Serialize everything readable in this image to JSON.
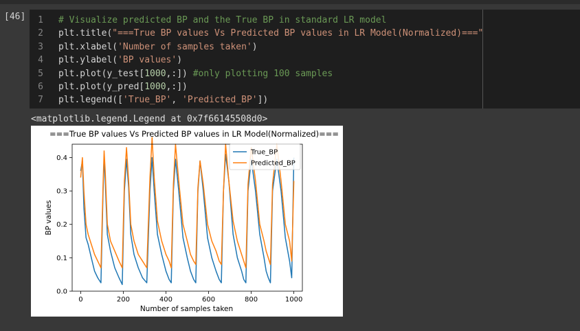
{
  "cell": {
    "execution_count": "[46]",
    "lines": [
      {
        "number": "1",
        "tokens": [
          {
            "type": "comment",
            "text": "# Visualize predicted BP and the True BP in standard LR model"
          }
        ]
      },
      {
        "number": "2",
        "tokens": [
          {
            "type": "plain",
            "text": "plt.title("
          },
          {
            "type": "string",
            "text": "\"===True BP values Vs Predicted BP values in LR Model(Normalized)===\""
          },
          {
            "type": "plain",
            "text": ")"
          }
        ]
      },
      {
        "number": "3",
        "tokens": [
          {
            "type": "plain",
            "text": "plt.xlabel("
          },
          {
            "type": "string",
            "text": "'Number of samples taken'"
          },
          {
            "type": "plain",
            "text": ")"
          }
        ]
      },
      {
        "number": "4",
        "tokens": [
          {
            "type": "plain",
            "text": "plt.ylabel("
          },
          {
            "type": "string",
            "text": "'BP values'"
          },
          {
            "type": "plain",
            "text": ")"
          }
        ]
      },
      {
        "number": "5",
        "tokens": [
          {
            "type": "plain",
            "text": "plt.plot(y_test["
          },
          {
            "type": "number",
            "text": "1000"
          },
          {
            "type": "plain",
            "text": ",:]) "
          },
          {
            "type": "comment",
            "text": "#only plotting 100 samples"
          }
        ]
      },
      {
        "number": "6",
        "tokens": [
          {
            "type": "plain",
            "text": "plt.plot(y_pred["
          },
          {
            "type": "number",
            "text": "1000"
          },
          {
            "type": "plain",
            "text": ",:])"
          }
        ]
      },
      {
        "number": "7",
        "tokens": [
          {
            "type": "plain",
            "text": "plt.legend(["
          },
          {
            "type": "string",
            "text": "'True_BP'"
          },
          {
            "type": "plain",
            "text": ", "
          },
          {
            "type": "string",
            "text": "'Predicted_BP'"
          },
          {
            "type": "plain",
            "text": "])"
          }
        ]
      }
    ]
  },
  "output": {
    "repr_text": "<matplotlib.legend.Legend at 0x7f66145508d0>"
  },
  "chart_data": {
    "type": "line",
    "title": "===True BP values Vs Predicted BP values in LR Model(Normalized)===",
    "xlabel": "Number of samples taken",
    "ylabel": "BP values",
    "xlim": [
      -40,
      1040
    ],
    "ylim": [
      0.0,
      0.44
    ],
    "xticks": [
      0,
      200,
      400,
      600,
      800,
      1000
    ],
    "yticks": [
      0.0,
      0.1,
      0.2,
      0.3,
      0.4
    ],
    "ytick_labels": [
      "0.0",
      "0.1",
      "0.2",
      "0.3",
      "0.4"
    ],
    "grid": false,
    "legend_position": "top-right",
    "series": [
      {
        "name": "True_BP",
        "color": "#1f77b4",
        "x": [
          0,
          8,
          15,
          25,
          35,
          50,
          65,
          80,
          95,
          105,
          110,
          115,
          125,
          140,
          160,
          180,
          195,
          205,
          215,
          225,
          235,
          250,
          270,
          290,
          310,
          325,
          335,
          345,
          360,
          380,
          400,
          415,
          425,
          435,
          445,
          460,
          480,
          500,
          515,
          530,
          540,
          550,
          560,
          575,
          595,
          615,
          635,
          650,
          660,
          670,
          680,
          695,
          715,
          735,
          755,
          765,
          775,
          785,
          800,
          820,
          840,
          860,
          870,
          880,
          890,
          900,
          920,
          940,
          960,
          980,
          990,
          1000
        ],
        "y": [
          0.36,
          0.39,
          0.25,
          0.16,
          0.14,
          0.1,
          0.06,
          0.04,
          0.025,
          0.3,
          0.4,
          0.33,
          0.17,
          0.12,
          0.07,
          0.04,
          0.02,
          0.3,
          0.395,
          0.31,
          0.17,
          0.11,
          0.07,
          0.04,
          0.025,
          0.3,
          0.4,
          0.3,
          0.17,
          0.11,
          0.06,
          0.035,
          0.025,
          0.3,
          0.395,
          0.3,
          0.16,
          0.1,
          0.06,
          0.035,
          0.025,
          0.3,
          0.39,
          0.3,
          0.16,
          0.1,
          0.06,
          0.035,
          0.025,
          0.3,
          0.41,
          0.33,
          0.17,
          0.1,
          0.06,
          0.035,
          0.025,
          0.3,
          0.395,
          0.3,
          0.17,
          0.1,
          0.06,
          0.04,
          0.025,
          0.3,
          0.395,
          0.3,
          0.16,
          0.09,
          0.04,
          0.4
        ]
      },
      {
        "name": "Predicted_BP",
        "color": "#ff7f0e",
        "x": [
          0,
          8,
          15,
          25,
          35,
          50,
          65,
          80,
          95,
          105,
          110,
          115,
          125,
          140,
          160,
          180,
          195,
          205,
          215,
          225,
          235,
          250,
          270,
          290,
          310,
          325,
          335,
          345,
          360,
          380,
          400,
          415,
          425,
          435,
          445,
          460,
          480,
          500,
          515,
          530,
          540,
          550,
          560,
          575,
          595,
          615,
          635,
          650,
          660,
          670,
          680,
          695,
          715,
          735,
          755,
          765,
          775,
          785,
          800,
          820,
          840,
          860,
          870,
          880,
          890,
          900,
          920,
          940,
          960,
          980,
          990,
          1000
        ],
        "y": [
          0.34,
          0.4,
          0.3,
          0.2,
          0.17,
          0.14,
          0.11,
          0.09,
          0.07,
          0.32,
          0.42,
          0.36,
          0.2,
          0.15,
          0.12,
          0.09,
          0.07,
          0.33,
          0.43,
          0.33,
          0.2,
          0.15,
          0.11,
          0.09,
          0.07,
          0.34,
          0.46,
          0.34,
          0.21,
          0.15,
          0.11,
          0.09,
          0.07,
          0.32,
          0.44,
          0.33,
          0.2,
          0.15,
          0.11,
          0.09,
          0.08,
          0.31,
          0.39,
          0.32,
          0.2,
          0.15,
          0.12,
          0.09,
          0.08,
          0.3,
          0.44,
          0.33,
          0.21,
          0.15,
          0.11,
          0.09,
          0.07,
          0.32,
          0.43,
          0.33,
          0.2,
          0.15,
          0.12,
          0.1,
          0.08,
          0.32,
          0.44,
          0.33,
          0.2,
          0.15,
          0.09,
          0.33
        ]
      }
    ]
  }
}
